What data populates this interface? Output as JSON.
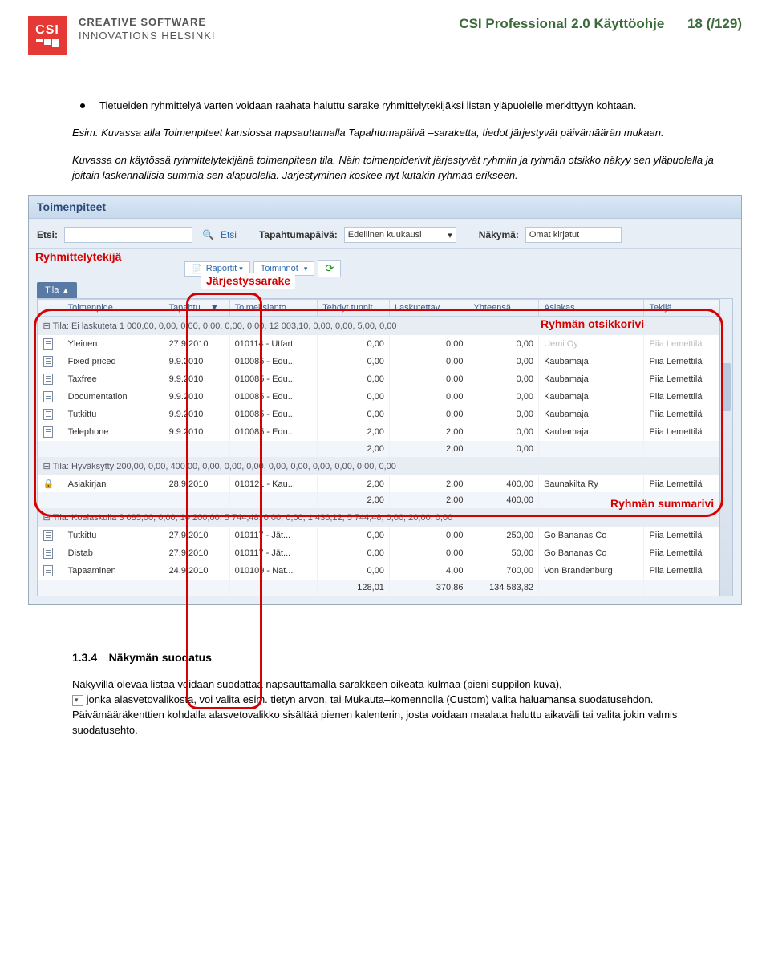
{
  "header": {
    "logo_text": "CSI",
    "brand_line1": "CREATIVE SOFTWARE",
    "brand_line2": "INNOVATIONS HELSINKI",
    "doc_title": "CSI Professional 2.0 Käyttöohje",
    "page_num": "18 (/129)"
  },
  "text": {
    "bullet": "Tietueiden ryhmittelyä varten voidaan raahata haluttu sarake ryhmittelytekijäksi listan yläpuolelle merkittyyn kohtaan.",
    "para1": "Esim. Kuvassa alla Toimenpiteet kansiossa napsauttamalla Tapahtumapäivä –saraketta, tiedot järjestyvät päivämäärän mukaan.",
    "para2": "Kuvassa on käytössä ryhmittelytekijänä toimenpiteen tila. Näin toimenpiderivit järjestyvät ryhmiin ja ryhmän otsikko näkyy sen yläpuolella ja joitain laskennallisia summia sen alapuolella. Järjestyminen koskee nyt kutakin ryhmää erikseen."
  },
  "annot": {
    "ry": "Ryhmittelytekijä",
    "js": "Järjestyssarake",
    "or": "Ryhmän otsikkorivi",
    "sr": "Ryhmän summarivi"
  },
  "ss": {
    "title": "Toimenpiteet",
    "etsi_label": "Etsi:",
    "etsi_btn": "Etsi",
    "tap_label": "Tapahtumapäivä:",
    "tap_val": "Edellinen kuukausi",
    "nak_label": "Näkymä:",
    "nak_val": "Omat kirjatut",
    "raportit": "Raportit",
    "toiminnot": "Toiminnot",
    "tila_tab": "Tila",
    "cols": {
      "c1": "Toimenpide",
      "c2": "Tapahtu... ▼",
      "c3": "Toimeksianto",
      "c4": "Tehdyt tunnit",
      "c5": "Laskutettav...",
      "c6": "Yhteensä",
      "c7": "Asiakas",
      "c8": "Tekijä"
    },
    "group1": "⊟ Tila: Ei laskuteta 1 000,00, 0,00, 0,00, 0,00, 0,00, 0,00, 12 003,10, 0,00, 0,00, 5,00, 0,00",
    "rows1": [
      {
        "n": "Yleinen",
        "d": "27.9.2010",
        "t": "010114 - Utfart",
        "tt": "0,00",
        "ls": "0,00",
        "yh": "0,00",
        "a": "Uemi Oy",
        "tk": "Piia Lemettilä"
      },
      {
        "n": "Fixed priced",
        "d": "9.9.2010",
        "t": "010085 - Edu...",
        "tt": "0,00",
        "ls": "0,00",
        "yh": "0,00",
        "a": "Kaubamaja",
        "tk": "Piia Lemettilä"
      },
      {
        "n": "Taxfree",
        "d": "9.9.2010",
        "t": "010085 - Edu...",
        "tt": "0,00",
        "ls": "0,00",
        "yh": "0,00",
        "a": "Kaubamaja",
        "tk": "Piia Lemettilä"
      },
      {
        "n": "Documentation",
        "d": "9.9.2010",
        "t": "010085 - Edu...",
        "tt": "0,00",
        "ls": "0,00",
        "yh": "0,00",
        "a": "Kaubamaja",
        "tk": "Piia Lemettilä"
      },
      {
        "n": "Tutkittu",
        "d": "9.9.2010",
        "t": "010085 - Edu...",
        "tt": "0,00",
        "ls": "0,00",
        "yh": "0,00",
        "a": "Kaubamaja",
        "tk": "Piia Lemettilä"
      },
      {
        "n": "Telephone",
        "d": "9.9.2010",
        "t": "010085 - Edu...",
        "tt": "2,00",
        "ls": "2,00",
        "yh": "0,00",
        "a": "Kaubamaja",
        "tk": "Piia Lemettilä"
      }
    ],
    "sum1": {
      "tt": "2,00",
      "ls": "2,00",
      "yh": "0,00"
    },
    "group2": "⊟ Tila: Hyväksytty 200,00, 0,00, 400,00, 0,00, 0,00, 0,00, 0,00, 0,00, 0,00, 0,00, 0,00, 0,00",
    "rows2": [
      {
        "ico": "lock",
        "n": "Asiakirjan",
        "d": "28.9.2010",
        "t": "010121 - Kau...",
        "tt": "2,00",
        "ls": "2,00",
        "yh": "400,00",
        "a": "Saunakilta Ry",
        "tk": "Piia Lemettilä"
      }
    ],
    "sum2": {
      "tt": "2,00",
      "ls": "2,00",
      "yh": "400,00"
    },
    "group3": "⊟ Tila: Koelaskulla 3 085,00, 0,00, 10 200,00, 5 744,48, 0,00, 0,00, 1 436,12, 5 744,48, 0,00, 20,00, 0,00",
    "rows3": [
      {
        "n": "Tutkittu",
        "d": "27.9.2010",
        "t": "010117 - Jät...",
        "tt": "0,00",
        "ls": "0,00",
        "yh": "250,00",
        "a": "Go Bananas Co",
        "tk": "Piia Lemettilä"
      },
      {
        "n": "Distab",
        "d": "27.9.2010",
        "t": "010117 - Jät...",
        "tt": "0,00",
        "ls": "0,00",
        "yh": "50,00",
        "a": "Go Bananas Co",
        "tk": "Piia Lemettilä"
      },
      {
        "n": "Tapaaminen",
        "d": "24.9.2010",
        "t": "010109 - Nat...",
        "tt": "0,00",
        "ls": "4,00",
        "yh": "700,00",
        "a": "Von Brandenburg",
        "tk": "Piia Lemettilä"
      }
    ],
    "sum3": {
      "tt": "128,01",
      "ls": "370,86",
      "yh": "134 583,82"
    }
  },
  "bottom": {
    "num": "1.3.4",
    "title": "Näkymän suodatus",
    "p1a": "Näkyvillä olevaa listaa voidaan suodattaa napsauttamalla sarakkeen oikeata kulmaa (pieni suppilon kuva),",
    "p1b": " jonka alasvetovalikosta, voi valita esim. tietyn arvon, tai Mukauta–komennolla (Custom) valita haluamansa suodatusehdon. Päivämääräkenttien kohdalla alasvetovalikko sisältää pienen kalenterin, josta voidaan maalata haluttu aikaväli tai valita jokin valmis suodatusehto."
  }
}
